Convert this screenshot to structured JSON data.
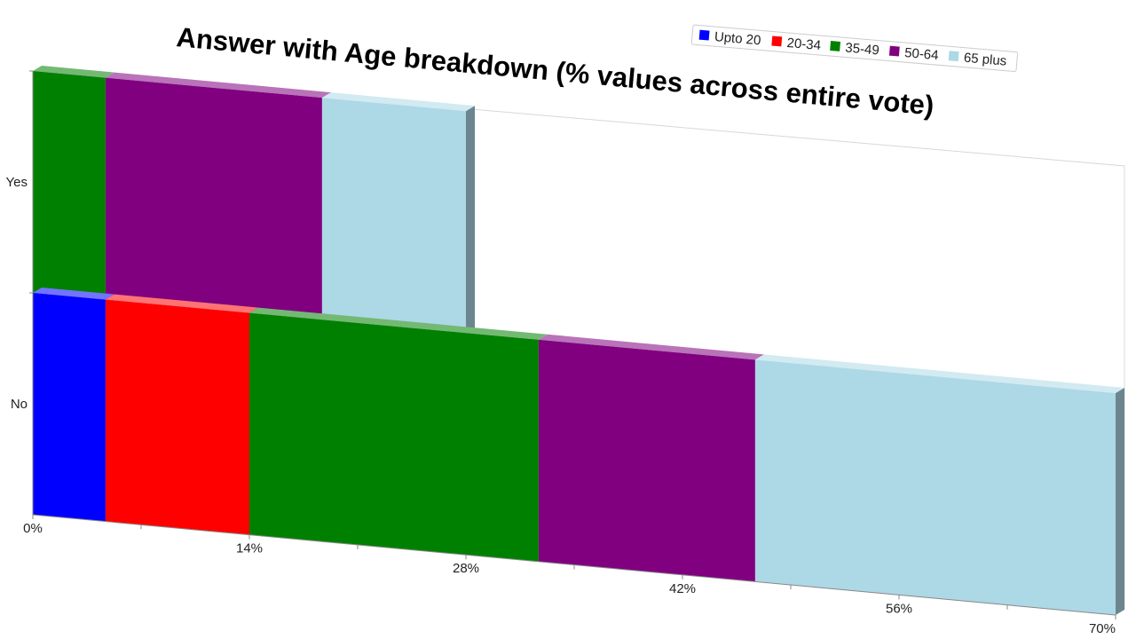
{
  "chart_data": {
    "type": "bar",
    "orientation": "horizontal",
    "stacked": true,
    "three_d": true,
    "title": "Answer with Age breakdown (% values across entire vote)",
    "categories": [
      "Yes",
      "No"
    ],
    "series": [
      {
        "name": "Upto 20",
        "color": "#0000ff",
        "values": [
          0,
          4.7
        ]
      },
      {
        "name": "20-34",
        "color": "#ff0000",
        "values": [
          0,
          9.3
        ]
      },
      {
        "name": "35-49",
        "color": "#008000",
        "values": [
          4.7,
          18.7
        ]
      },
      {
        "name": "50-64",
        "color": "#800080",
        "values": [
          14.0,
          14.0
        ]
      },
      {
        "name": "65 plus",
        "color": "#add8e6",
        "values": [
          9.3,
          23.3
        ]
      }
    ],
    "xlim": [
      0,
      70
    ],
    "x_ticks": [
      "0%",
      "14%",
      "28%",
      "42%",
      "56%",
      "70%"
    ],
    "legend_position": "top-right",
    "grid": false
  }
}
